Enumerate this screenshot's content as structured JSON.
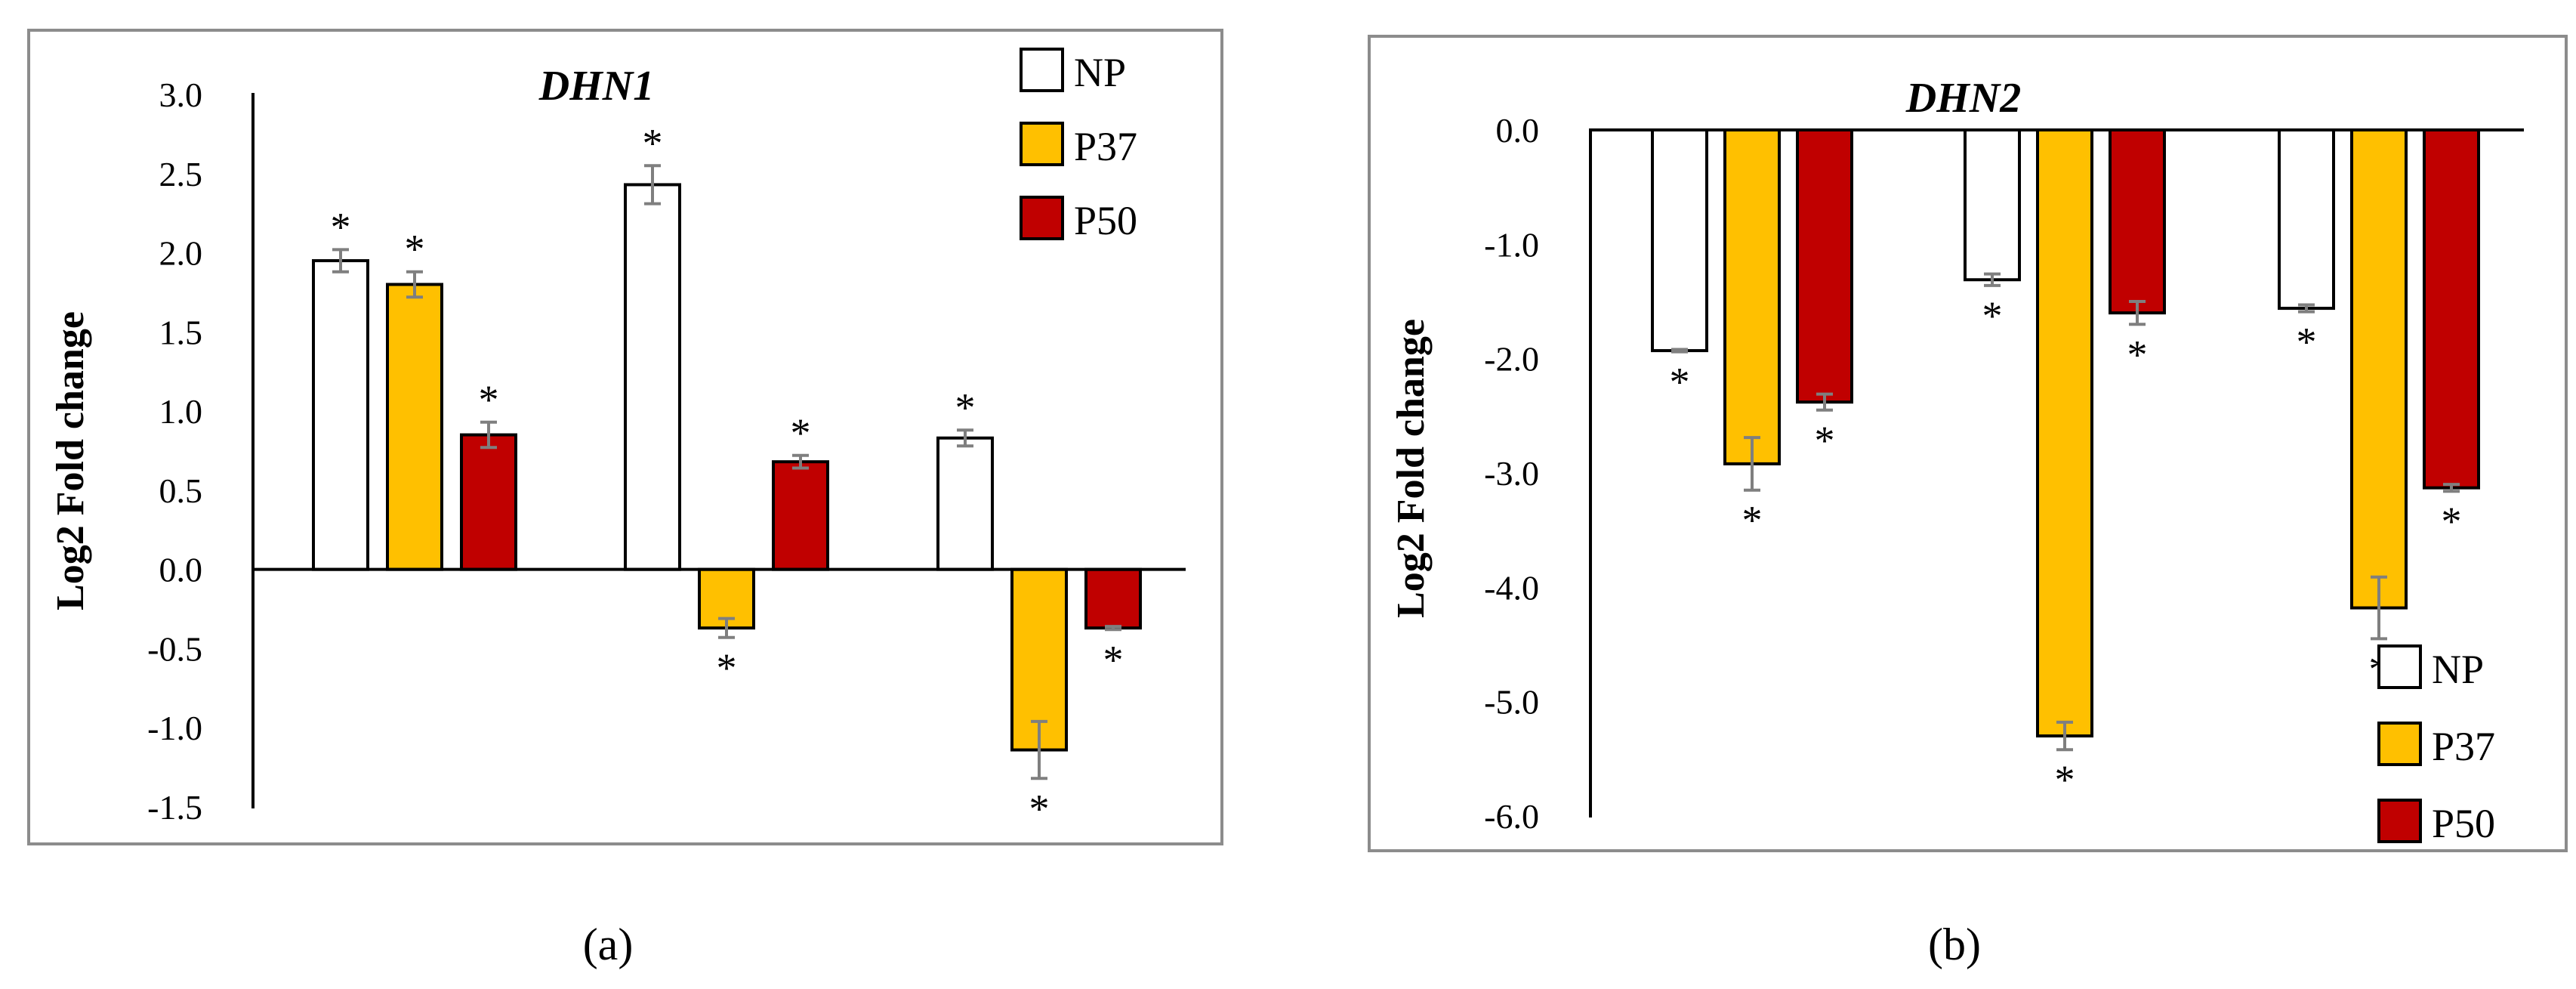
{
  "figure": {
    "panel_a_label": "(a)",
    "panel_b_label": "(b)"
  },
  "colors": {
    "NP": "#ffffff",
    "P37": "#ffc000",
    "P50": "#c00000",
    "frame": "#8c8c8c",
    "error_bar": "#7f7f7f",
    "text": "#000000"
  },
  "chart_data": [
    {
      "type": "bar",
      "title": "DHN1",
      "ylabel": "Log2 Fold change",
      "xlabel": "",
      "ylim": [
        -1.5,
        3.0
      ],
      "ytick_step": 0.5,
      "ytick_decimals": 1,
      "categories": [
        "",
        "",
        ""
      ],
      "legend": {
        "position": "top-right",
        "entries": [
          "NP",
          "P37",
          "P50"
        ]
      },
      "series": [
        {
          "name": "NP",
          "values": [
            1.95,
            2.43,
            0.83
          ],
          "errors": [
            0.07,
            0.12,
            0.05
          ],
          "marks": [
            "*",
            "*",
            "*"
          ]
        },
        {
          "name": "P37",
          "values": [
            1.8,
            -0.37,
            -1.14
          ],
          "errors": [
            0.08,
            0.06,
            0.18
          ],
          "marks": [
            "*",
            "*",
            "*"
          ]
        },
        {
          "name": "P50",
          "values": [
            0.85,
            0.68,
            -0.37
          ],
          "errors": [
            0.08,
            0.04,
            0.01
          ],
          "marks": [
            "*",
            "*",
            "*"
          ]
        }
      ]
    },
    {
      "type": "bar",
      "title": "DHN2",
      "ylabel": "Log2 Fold change",
      "xlabel": "",
      "ylim": [
        -6.0,
        0.0
      ],
      "ytick_step": 1.0,
      "ytick_decimals": 1,
      "categories": [
        "",
        "",
        ""
      ],
      "legend": {
        "position": "bottom-right",
        "entries": [
          "NP",
          "P37",
          "P50"
        ]
      },
      "series": [
        {
          "name": "NP",
          "values": [
            -1.93,
            -1.31,
            -1.56
          ],
          "errors": [
            0.01,
            0.05,
            0.03
          ],
          "marks": [
            "*",
            "*",
            "*"
          ]
        },
        {
          "name": "P37",
          "values": [
            -2.92,
            -5.3,
            -4.18
          ],
          "errors": [
            0.23,
            0.12,
            0.27
          ],
          "marks": [
            "*",
            "*",
            "*"
          ]
        },
        {
          "name": "P50",
          "values": [
            -2.38,
            -1.6,
            -3.13
          ],
          "errors": [
            0.07,
            0.1,
            0.03
          ],
          "marks": [
            "*",
            "*",
            "*"
          ]
        }
      ]
    }
  ]
}
